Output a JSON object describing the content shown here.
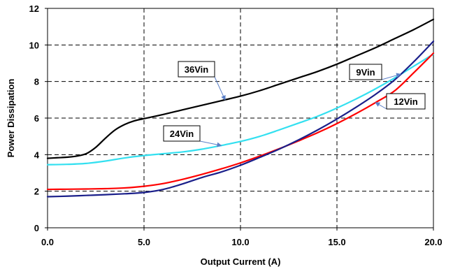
{
  "chart_data": {
    "type": "line",
    "title": "",
    "xlabel": "Output Current (A)",
    "ylabel": "Power Dissipation",
    "xlim": [
      0,
      20
    ],
    "ylim": [
      0,
      12
    ],
    "x_ticks": [
      "0.0",
      "5.0",
      "10.0",
      "15.0",
      "20.0"
    ],
    "y_ticks": [
      "0",
      "2",
      "4",
      "6",
      "8",
      "10",
      "12"
    ],
    "grid": true,
    "series": [
      {
        "name": "36Vin",
        "color": "#000000",
        "x": [
          0,
          0.5,
          1,
          1.5,
          2,
          2.5,
          3,
          3.5,
          4,
          4.5,
          5,
          6,
          7,
          8,
          9,
          10,
          11,
          12,
          13,
          14,
          15,
          16,
          17,
          18,
          19,
          20
        ],
        "y": [
          3.8,
          3.83,
          3.86,
          3.92,
          4.05,
          4.4,
          4.9,
          5.35,
          5.65,
          5.85,
          5.97,
          6.2,
          6.45,
          6.7,
          6.95,
          7.2,
          7.5,
          7.85,
          8.2,
          8.55,
          8.95,
          9.4,
          9.85,
          10.35,
          10.85,
          11.4
        ]
      },
      {
        "name": "24Vin",
        "color": "#33e0f0",
        "x": [
          0,
          1,
          2,
          3,
          4,
          5,
          6,
          7,
          8,
          9,
          10,
          11,
          12,
          13,
          14,
          15,
          16,
          17,
          18,
          19,
          20
        ],
        "y": [
          3.45,
          3.47,
          3.52,
          3.65,
          3.82,
          3.95,
          4.05,
          4.15,
          4.3,
          4.5,
          4.72,
          5.0,
          5.35,
          5.72,
          6.1,
          6.55,
          7.05,
          7.6,
          8.2,
          8.85,
          9.5
        ]
      },
      {
        "name": "12Vin",
        "color": "#ff0000",
        "x": [
          0,
          1,
          2,
          3,
          4,
          5,
          6,
          7,
          8,
          9,
          10,
          11,
          12,
          13,
          14,
          15,
          16,
          17,
          18,
          19,
          20
        ],
        "y": [
          2.1,
          2.11,
          2.12,
          2.14,
          2.18,
          2.27,
          2.42,
          2.65,
          2.92,
          3.22,
          3.55,
          3.92,
          4.32,
          4.75,
          5.2,
          5.7,
          6.25,
          6.85,
          7.5,
          8.5,
          9.55
        ]
      },
      {
        "name": "9Vin",
        "color": "#1a1f8a",
        "x": [
          0,
          1,
          2,
          3,
          4,
          5,
          6,
          7,
          8,
          9,
          10,
          11,
          12,
          13,
          14,
          15,
          16,
          17,
          18,
          19,
          20
        ],
        "y": [
          1.7,
          1.73,
          1.77,
          1.81,
          1.86,
          1.93,
          2.1,
          2.4,
          2.75,
          3.05,
          3.42,
          3.85,
          4.3,
          4.8,
          5.35,
          5.95,
          6.6,
          7.3,
          8.1,
          9.1,
          10.2
        ]
      }
    ],
    "annotations": [
      {
        "text": "36Vin",
        "series": "36Vin"
      },
      {
        "text": "9Vin",
        "series": "9Vin"
      },
      {
        "text": "12Vin",
        "series": "12Vin"
      },
      {
        "text": "24Vin",
        "series": "24Vin"
      }
    ]
  }
}
